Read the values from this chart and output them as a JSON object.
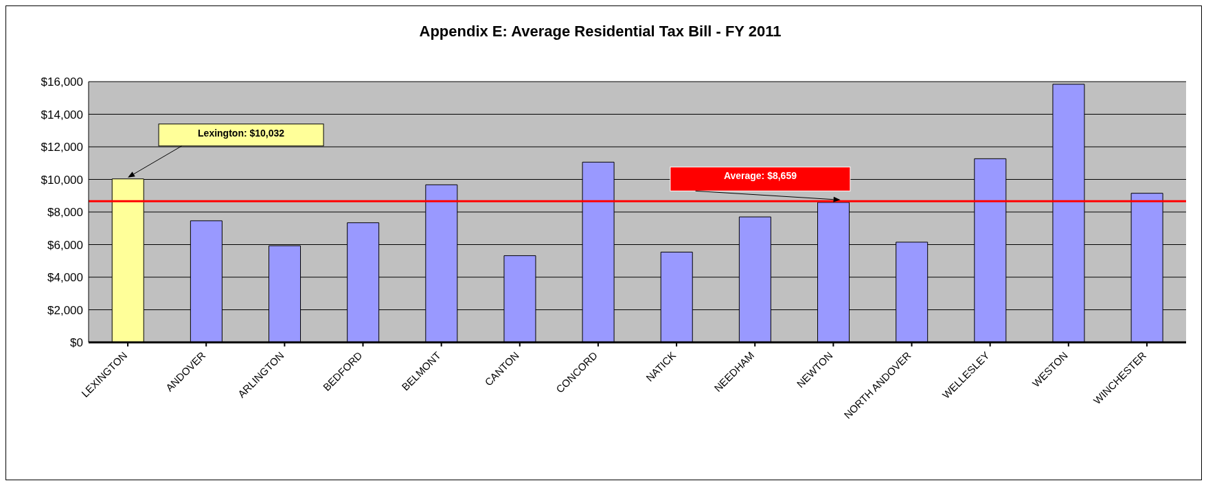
{
  "chart_data": {
    "type": "bar",
    "title": "Appendix E: Average Residential Tax Bill - FY 2011",
    "categories": [
      "LEXINGTON",
      "ANDOVER",
      "ARLINGTON",
      "BEDFORD",
      "BELMONT",
      "CANTON",
      "CONCORD",
      "NATICK",
      "NEEDHAM",
      "NEWTON",
      "NORTH ANDOVER",
      "WELLESLEY",
      "WESTON",
      "WINCHESTER"
    ],
    "values": [
      10032,
      7460,
      5930,
      7340,
      9670,
      5320,
      11060,
      5540,
      7700,
      8590,
      6150,
      11270,
      15840,
      9150
    ],
    "colors": [
      "#ffff99",
      "#9999ff",
      "#9999ff",
      "#9999ff",
      "#9999ff",
      "#9999ff",
      "#9999ff",
      "#9999ff",
      "#9999ff",
      "#9999ff",
      "#9999ff",
      "#9999ff",
      "#9999ff",
      "#9999ff"
    ],
    "ylim": [
      0,
      16000
    ],
    "yticks": [
      {
        "value": 0,
        "label": "$0"
      },
      {
        "value": 2000,
        "label": "$2,000"
      },
      {
        "value": 4000,
        "label": "$4,000"
      },
      {
        "value": 6000,
        "label": "$6,000"
      },
      {
        "value": 8000,
        "label": "$8,000"
      },
      {
        "value": 10000,
        "label": "$10,000"
      },
      {
        "value": 12000,
        "label": "$12,000"
      },
      {
        "value": 14000,
        "label": "$14,000"
      },
      {
        "value": 16000,
        "label": "$16,000"
      }
    ],
    "grid": "y",
    "ref_lines": [
      {
        "axis": "y",
        "value": 8659,
        "label": "Average: $8,659",
        "color": "#ff0000"
      }
    ],
    "annotations": [
      "Lexington: $10,032"
    ]
  }
}
